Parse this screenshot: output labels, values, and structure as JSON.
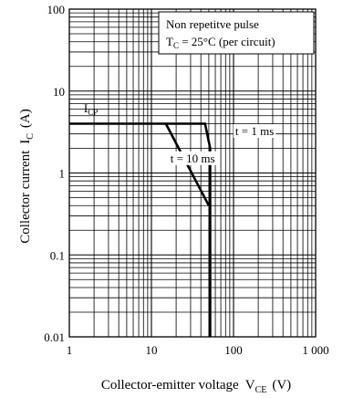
{
  "chart_data": {
    "type": "line",
    "title": "",
    "xlabel": "Collector-emitter voltage",
    "xlabel_symbol": "V",
    "xlabel_sub": "CE",
    "xlabel_unit": "(V)",
    "ylabel": "Collector current",
    "ylabel_symbol": "I",
    "ylabel_sub": "C",
    "ylabel_unit": "(A)",
    "xscale": "log",
    "yscale": "log",
    "xlim": [
      1,
      1000
    ],
    "ylim": [
      0.01,
      100
    ],
    "grid": true,
    "x_ticks": [
      {
        "value": 1,
        "label": "1"
      },
      {
        "value": 10,
        "label": "10"
      },
      {
        "value": 100,
        "label": "100"
      },
      {
        "value": 1000,
        "label": "1 000"
      }
    ],
    "y_ticks": [
      {
        "value": 0.01,
        "label": "0.01"
      },
      {
        "value": 0.1,
        "label": "0.1"
      },
      {
        "value": 1,
        "label": "1"
      },
      {
        "value": 10,
        "label": "10"
      },
      {
        "value": 100,
        "label": "100"
      }
    ],
    "legend_lines": [
      "Non repetitve pulse",
      "(per circuit)"
    ],
    "legend_condition": {
      "symbol": "T",
      "sub": "C",
      "text": " = 25°C"
    },
    "legend_position": "top-right",
    "series": [
      {
        "label": "t = 1 ms",
        "points": [
          [
            1,
            4
          ],
          [
            45,
            4
          ],
          [
            52,
            2
          ],
          [
            52,
            0.01
          ]
        ]
      },
      {
        "label": "t = 10 ms",
        "points": [
          [
            15,
            4
          ],
          [
            50,
            0.4
          ]
        ]
      }
    ],
    "annotations": [
      {
        "id": "icp",
        "symbol": "I",
        "sub": "CP",
        "x": 1.5,
        "y": 5.5
      },
      {
        "id": "t1",
        "text": "t = 1 ms",
        "x": 105,
        "y": 2.9
      },
      {
        "id": "t10",
        "text": "t = 10 ms",
        "x": 17,
        "y": 1.35
      }
    ]
  }
}
